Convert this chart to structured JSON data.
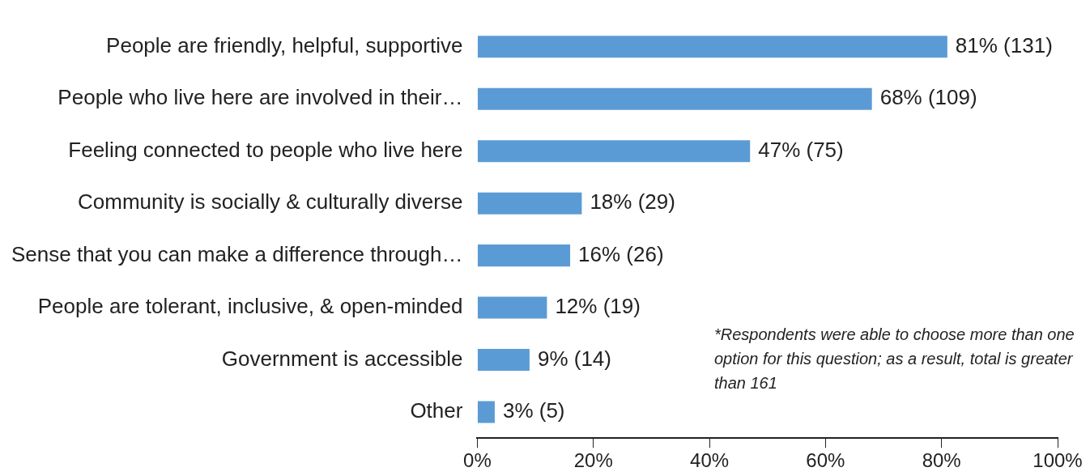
{
  "chart_data": {
    "type": "bar",
    "orientation": "horizontal",
    "categories": [
      "People are friendly, helpful, supportive",
      "People who live here are involved in their…",
      "Feeling connected to people who live here",
      "Community is socially & culturally diverse",
      "Sense that you can make a difference through…",
      "People are tolerant, inclusive, & open-minded",
      "Government is accessible",
      "Other"
    ],
    "values": [
      81,
      68,
      47,
      18,
      16,
      12,
      9,
      3
    ],
    "value_labels": [
      "81% (131)",
      "68% (109)",
      "47% (75)",
      "18% (29)",
      "16% (26)",
      "12% (19)",
      "9% (14)",
      "3% (5)"
    ],
    "color": "#5b9bd5",
    "xlim": [
      0,
      100
    ],
    "xticks": [
      {
        "value": 0,
        "label": "0%"
      },
      {
        "value": 20,
        "label": "20%"
      },
      {
        "value": 40,
        "label": "40%"
      },
      {
        "value": 60,
        "label": "60%"
      },
      {
        "value": 80,
        "label": "80%"
      },
      {
        "value": 100,
        "label": "100%"
      }
    ],
    "grid": false,
    "legend": false,
    "annotations": [
      "*Respondents were able to choose more than one option for this question; as a result, total is greater than 161"
    ]
  }
}
